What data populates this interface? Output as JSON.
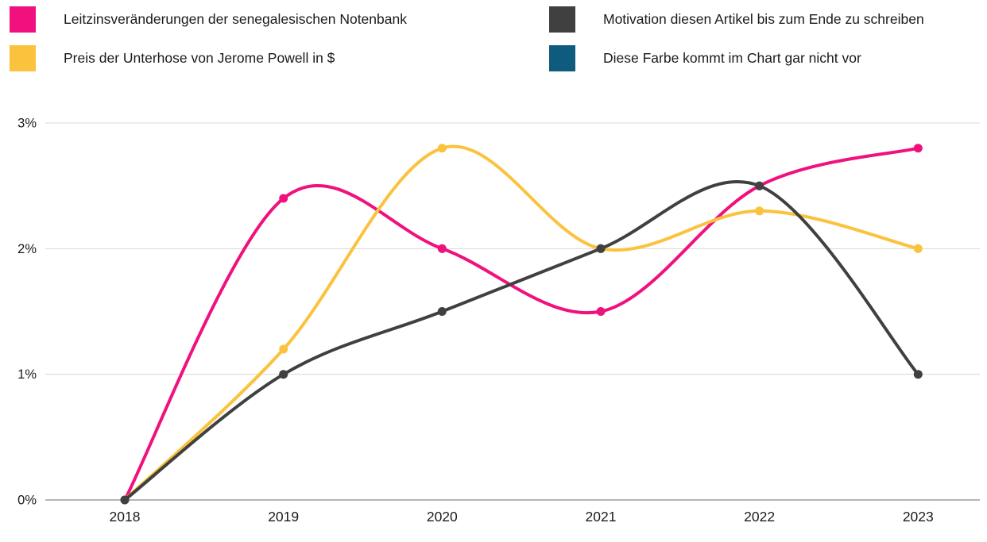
{
  "legend": {
    "items": [
      {
        "label": "Leitzinsveränderungen der senegalesischen Notenbank",
        "color": "#F0117E"
      },
      {
        "label": "Preis der Unterhose von Jerome Powell in $",
        "color": "#FBC23D"
      },
      {
        "label": "Motivation diesen Artikel bis zum Ende zu schreiben",
        "color": "#404040"
      },
      {
        "label": "Diese Farbe kommt im Chart gar nicht vor",
        "color": "#0E5B7E"
      }
    ]
  },
  "chart_data": {
    "type": "line",
    "title": "",
    "xlabel": "",
    "ylabel": "",
    "categories": [
      "2018",
      "2019",
      "2020",
      "2021",
      "2022",
      "2023"
    ],
    "series": [
      {
        "name": "Leitzinsveränderungen der senegalesischen Notenbank",
        "color": "#F0117E",
        "values": [
          0,
          2.4,
          2.0,
          1.5,
          2.5,
          2.8
        ]
      },
      {
        "name": "Preis der Unterhose von Jerome Powell in $",
        "color": "#FBC23D",
        "values": [
          0,
          1.2,
          2.8,
          2.0,
          2.3,
          2.0
        ]
      },
      {
        "name": "Motivation diesen Artikel bis zum Ende zu schreiben",
        "color": "#404040",
        "values": [
          0,
          1.0,
          1.5,
          2.0,
          2.5,
          1.0
        ]
      }
    ],
    "legend_only_entries": [
      {
        "name": "Diese Farbe kommt im Chart gar nicht vor",
        "color": "#0E5B7E"
      }
    ],
    "y_ticks": [
      "0%",
      "1%",
      "2%",
      "3%"
    ],
    "y_tick_values": [
      0,
      1,
      2,
      3
    ],
    "ylim": [
      0,
      3
    ],
    "grid": true,
    "smooth": true,
    "legend_position": "top",
    "colors": {
      "gridline": "#D8D8D8",
      "zero_axis": "#9E9E9E",
      "tick_text": "#1A1A1A"
    }
  }
}
